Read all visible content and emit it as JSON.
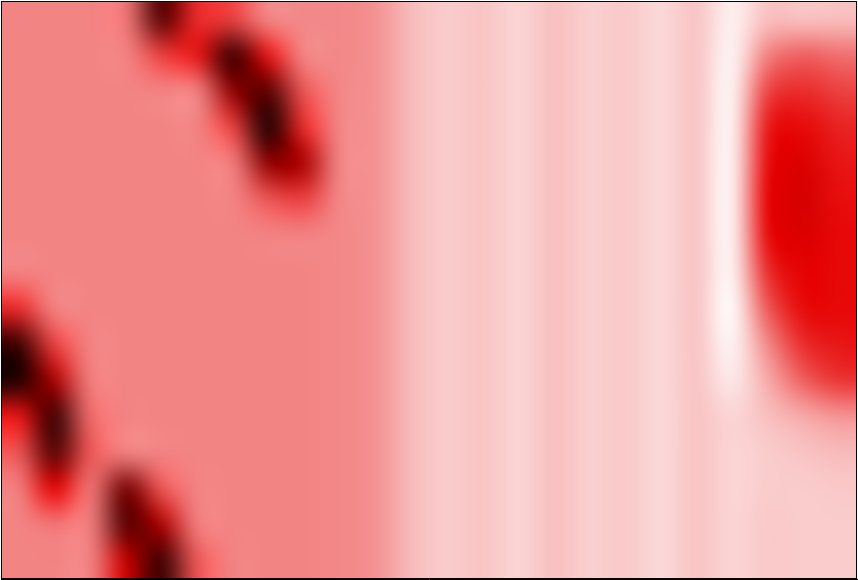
{
  "chart_data": {
    "type": "heatmap",
    "tick_labels": false,
    "xlim": [
      0,
      24
    ],
    "ylim": [
      0,
      16
    ],
    "zlim": [
      0,
      1
    ],
    "cells": [
      [
        0.71,
        0.71,
        0.71,
        0.68,
        0.15,
        0.5,
        0.55,
        0.72,
        0.72,
        0.72,
        0.74,
        0.84,
        0.88,
        0.86,
        0.9,
        0.85,
        0.89,
        0.87,
        0.91,
        0.86,
        0.97,
        0.85,
        0.86,
        0.85
      ],
      [
        0.71,
        0.71,
        0.71,
        0.71,
        0.55,
        0.45,
        0.1,
        0.45,
        0.72,
        0.72,
        0.74,
        0.84,
        0.88,
        0.86,
        0.9,
        0.85,
        0.89,
        0.87,
        0.91,
        0.86,
        0.98,
        0.7,
        0.62,
        0.66
      ],
      [
        0.71,
        0.71,
        0.71,
        0.71,
        0.71,
        0.71,
        0.25,
        0.15,
        0.6,
        0.72,
        0.74,
        0.84,
        0.88,
        0.86,
        0.9,
        0.85,
        0.89,
        0.87,
        0.91,
        0.86,
        0.98,
        0.55,
        0.5,
        0.55
      ],
      [
        0.71,
        0.71,
        0.71,
        0.71,
        0.71,
        0.71,
        0.55,
        0.05,
        0.5,
        0.72,
        0.74,
        0.84,
        0.88,
        0.86,
        0.9,
        0.85,
        0.89,
        0.87,
        0.91,
        0.86,
        0.98,
        0.45,
        0.42,
        0.48
      ],
      [
        0.71,
        0.71,
        0.71,
        0.71,
        0.71,
        0.71,
        0.7,
        0.25,
        0.3,
        0.72,
        0.74,
        0.84,
        0.88,
        0.86,
        0.9,
        0.85,
        0.89,
        0.87,
        0.91,
        0.86,
        0.98,
        0.42,
        0.38,
        0.45
      ],
      [
        0.71,
        0.71,
        0.71,
        0.71,
        0.71,
        0.71,
        0.71,
        0.6,
        0.55,
        0.72,
        0.74,
        0.84,
        0.88,
        0.86,
        0.9,
        0.85,
        0.89,
        0.87,
        0.91,
        0.86,
        0.98,
        0.4,
        0.37,
        0.43
      ],
      [
        0.71,
        0.71,
        0.71,
        0.71,
        0.71,
        0.71,
        0.71,
        0.71,
        0.71,
        0.72,
        0.74,
        0.84,
        0.88,
        0.86,
        0.9,
        0.85,
        0.89,
        0.87,
        0.91,
        0.86,
        0.98,
        0.42,
        0.38,
        0.42
      ],
      [
        0.71,
        0.71,
        0.71,
        0.71,
        0.71,
        0.71,
        0.71,
        0.71,
        0.71,
        0.72,
        0.74,
        0.84,
        0.88,
        0.86,
        0.9,
        0.85,
        0.89,
        0.87,
        0.91,
        0.86,
        0.98,
        0.5,
        0.4,
        0.42
      ],
      [
        0.5,
        0.71,
        0.71,
        0.71,
        0.71,
        0.71,
        0.71,
        0.71,
        0.71,
        0.72,
        0.74,
        0.84,
        0.88,
        0.86,
        0.9,
        0.85,
        0.89,
        0.87,
        0.91,
        0.86,
        1.0,
        0.6,
        0.42,
        0.42
      ],
      [
        0.1,
        0.55,
        0.71,
        0.71,
        0.71,
        0.71,
        0.71,
        0.71,
        0.71,
        0.72,
        0.74,
        0.84,
        0.88,
        0.86,
        0.9,
        0.85,
        0.89,
        0.87,
        0.91,
        0.86,
        0.98,
        0.72,
        0.5,
        0.45
      ],
      [
        0.05,
        0.3,
        0.7,
        0.71,
        0.71,
        0.71,
        0.71,
        0.71,
        0.71,
        0.72,
        0.74,
        0.84,
        0.88,
        0.86,
        0.9,
        0.85,
        0.89,
        0.87,
        0.91,
        0.86,
        0.95,
        0.8,
        0.62,
        0.52
      ],
      [
        0.45,
        0.1,
        0.65,
        0.71,
        0.71,
        0.71,
        0.71,
        0.71,
        0.71,
        0.72,
        0.74,
        0.84,
        0.88,
        0.86,
        0.9,
        0.85,
        0.89,
        0.87,
        0.91,
        0.86,
        0.9,
        0.85,
        0.8,
        0.75
      ],
      [
        0.6,
        0.15,
        0.6,
        0.71,
        0.71,
        0.71,
        0.71,
        0.71,
        0.71,
        0.72,
        0.74,
        0.84,
        0.88,
        0.86,
        0.9,
        0.85,
        0.89,
        0.87,
        0.91,
        0.86,
        0.9,
        0.88,
        0.86,
        0.84
      ],
      [
        0.7,
        0.4,
        0.68,
        0.2,
        0.6,
        0.71,
        0.71,
        0.71,
        0.71,
        0.72,
        0.74,
        0.84,
        0.88,
        0.86,
        0.9,
        0.85,
        0.89,
        0.87,
        0.91,
        0.86,
        0.9,
        0.88,
        0.88,
        0.87
      ],
      [
        0.71,
        0.68,
        0.7,
        0.15,
        0.3,
        0.7,
        0.71,
        0.71,
        0.71,
        0.72,
        0.74,
        0.84,
        0.88,
        0.86,
        0.9,
        0.85,
        0.89,
        0.87,
        0.91,
        0.86,
        0.9,
        0.87,
        0.88,
        0.88
      ],
      [
        0.71,
        0.71,
        0.71,
        0.35,
        0.1,
        0.6,
        0.71,
        0.71,
        0.71,
        0.72,
        0.74,
        0.84,
        0.88,
        0.86,
        0.9,
        0.85,
        0.89,
        0.87,
        0.91,
        0.86,
        0.9,
        0.87,
        0.88,
        0.88
      ]
    ]
  }
}
